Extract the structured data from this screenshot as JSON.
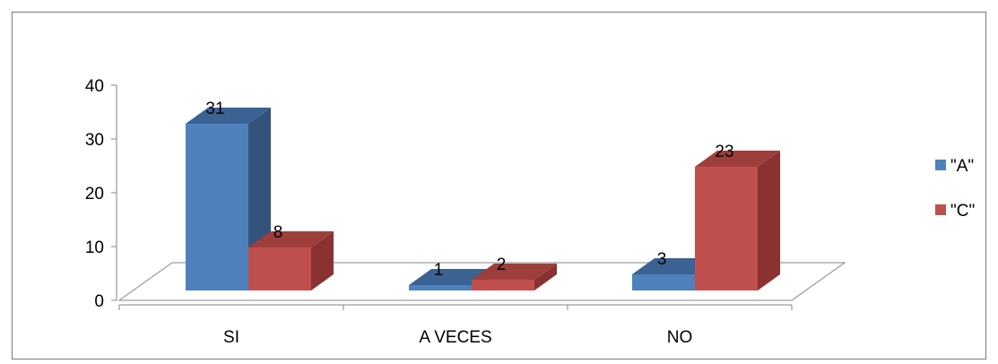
{
  "chart_data": {
    "type": "bar",
    "style": "3d-clustered-column",
    "categories": [
      "SI",
      "A VECES",
      "NO"
    ],
    "series": [
      {
        "name": "\"A\"",
        "values": [
          31,
          1,
          3
        ],
        "color": "#4F81BD",
        "color_top": "#3A6293",
        "color_side": "#34527A"
      },
      {
        "name": "\"C\"",
        "values": [
          8,
          2,
          23
        ],
        "color": "#C0504D",
        "color_top": "#9E3E3B",
        "color_side": "#8A3230"
      }
    ],
    "y_ticks": [
      "0",
      "10",
      "20",
      "30",
      "40"
    ],
    "ylim": [
      0,
      40
    ],
    "grid": false,
    "legend_position": "right",
    "data_labels": true,
    "colors": {
      "frame": "#868686",
      "axis": "#868686",
      "text": "#000000"
    }
  }
}
